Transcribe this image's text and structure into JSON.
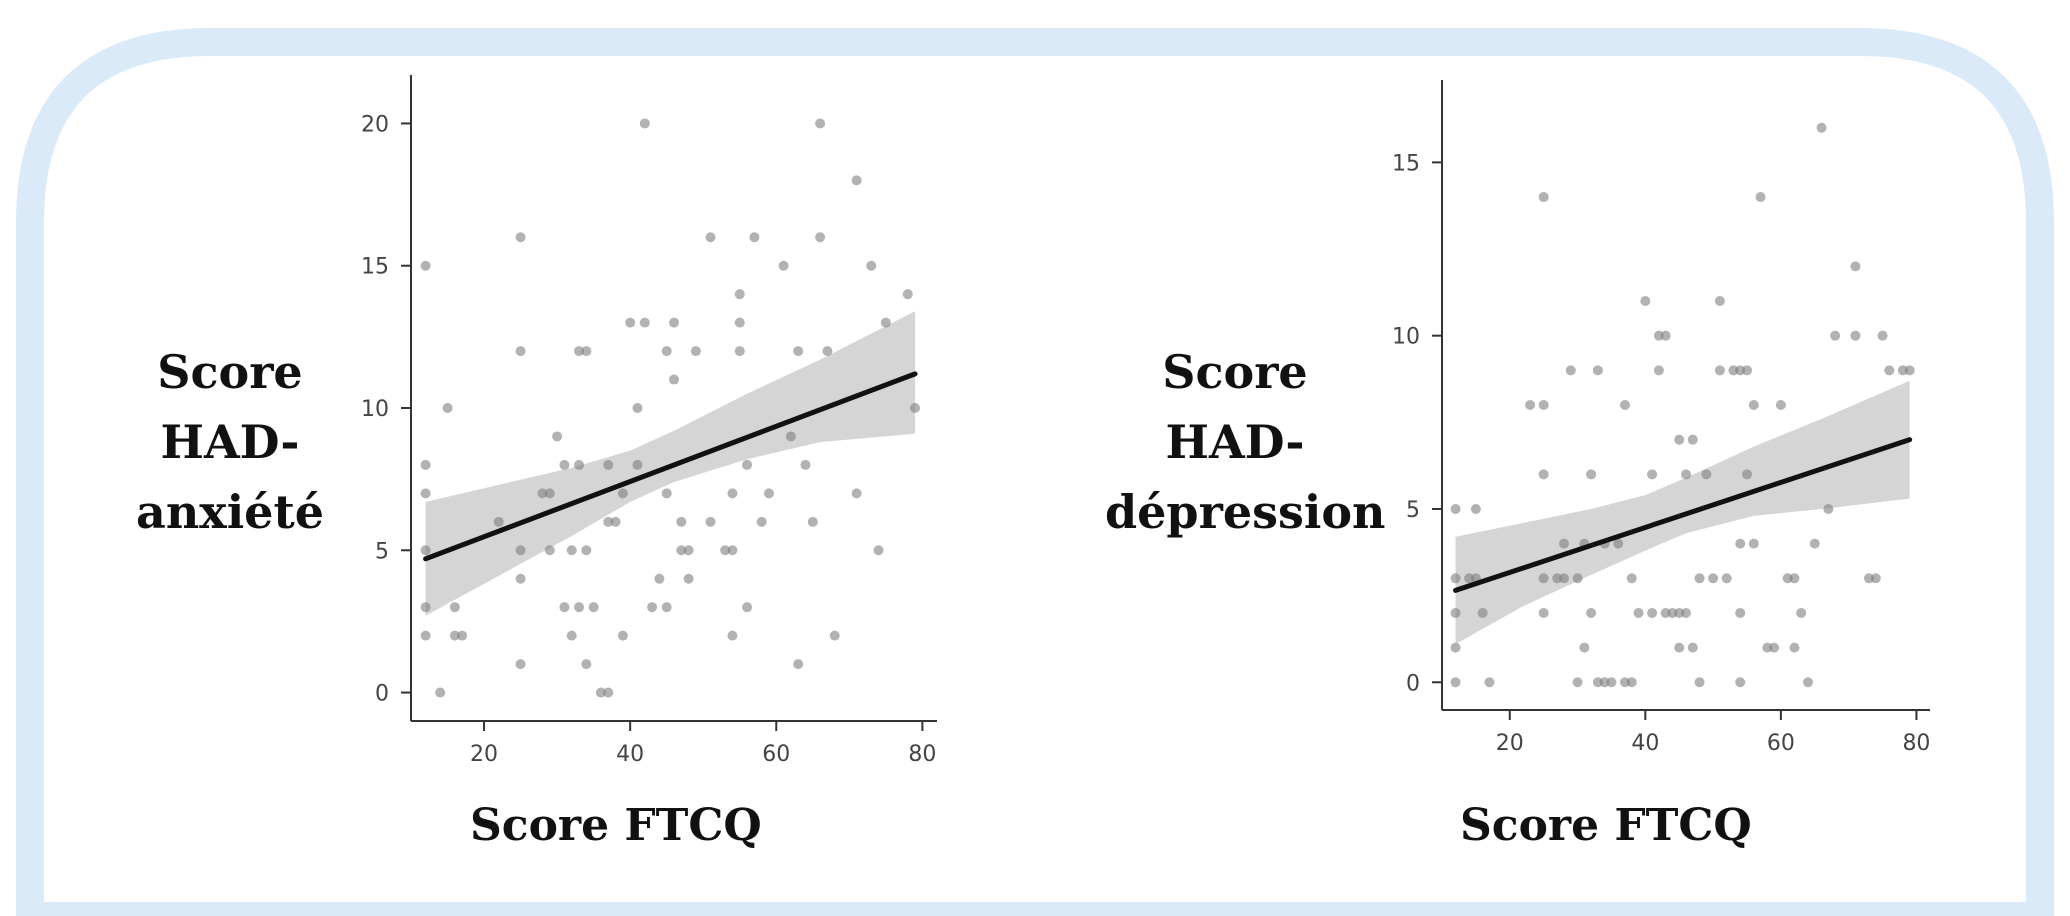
{
  "colors": {
    "frame_border": "#daeaf8",
    "points": "#7f7f7f",
    "band": "#d3d3d3",
    "fit_line": "#111111",
    "axis": "#333333"
  },
  "chart_data": [
    {
      "type": "scatter",
      "xlabel": "Score FTCQ",
      "ylabel_lines": [
        "Score",
        "HAD-",
        "anxiété"
      ],
      "xlim": [
        10,
        82
      ],
      "ylim": [
        -1,
        21
      ],
      "x_ticks": [
        20,
        40,
        60,
        80
      ],
      "y_ticks": [
        0,
        5,
        10,
        15,
        20
      ],
      "regression_line": {
        "x": [
          12,
          79
        ],
        "y": [
          4.7,
          11.2
        ]
      },
      "confidence_band": {
        "x": [
          12,
          22,
          32,
          40,
          46,
          56,
          66,
          79
        ],
        "upper": [
          6.7,
          7.3,
          7.9,
          8.5,
          9.2,
          10.5,
          11.7,
          13.4
        ],
        "lower": [
          2.7,
          4.1,
          5.5,
          6.7,
          7.4,
          8.2,
          8.8,
          9.1
        ]
      },
      "points": [
        [
          12,
          15
        ],
        [
          12,
          8
        ],
        [
          12,
          7
        ],
        [
          12,
          5
        ],
        [
          12,
          3
        ],
        [
          12,
          2
        ],
        [
          14,
          0
        ],
        [
          15,
          10
        ],
        [
          16,
          3
        ],
        [
          16,
          2
        ],
        [
          17,
          2
        ],
        [
          22,
          6
        ],
        [
          25,
          16
        ],
        [
          25,
          12
        ],
        [
          25,
          5
        ],
        [
          25,
          4
        ],
        [
          25,
          1
        ],
        [
          28,
          7
        ],
        [
          29,
          7
        ],
        [
          29,
          5
        ],
        [
          30,
          9
        ],
        [
          31,
          8
        ],
        [
          31,
          3
        ],
        [
          32,
          5
        ],
        [
          32,
          2
        ],
        [
          33,
          12
        ],
        [
          33,
          8
        ],
        [
          33,
          3
        ],
        [
          34,
          12
        ],
        [
          34,
          5
        ],
        [
          34,
          1
        ],
        [
          35,
          3
        ],
        [
          36,
          0
        ],
        [
          37,
          0
        ],
        [
          37,
          8
        ],
        [
          37,
          6
        ],
        [
          38,
          6
        ],
        [
          39,
          7
        ],
        [
          39,
          2
        ],
        [
          40,
          13
        ],
        [
          41,
          10
        ],
        [
          41,
          8
        ],
        [
          42,
          20
        ],
        [
          42,
          13
        ],
        [
          43,
          3
        ],
        [
          44,
          4
        ],
        [
          45,
          12
        ],
        [
          45,
          7
        ],
        [
          45,
          3
        ],
        [
          46,
          13
        ],
        [
          46,
          11
        ],
        [
          47,
          6
        ],
        [
          47,
          5
        ],
        [
          48,
          5
        ],
        [
          48,
          4
        ],
        [
          49,
          12
        ],
        [
          51,
          16
        ],
        [
          51,
          6
        ],
        [
          53,
          5
        ],
        [
          54,
          7
        ],
        [
          54,
          5
        ],
        [
          54,
          2
        ],
        [
          55,
          14
        ],
        [
          55,
          13
        ],
        [
          55,
          12
        ],
        [
          56,
          8
        ],
        [
          56,
          3
        ],
        [
          57,
          16
        ],
        [
          58,
          6
        ],
        [
          59,
          7
        ],
        [
          61,
          15
        ],
        [
          62,
          9
        ],
        [
          63,
          12
        ],
        [
          63,
          1
        ],
        [
          64,
          8
        ],
        [
          65,
          6
        ],
        [
          66,
          20
        ],
        [
          66,
          16
        ],
        [
          67,
          12
        ],
        [
          68,
          2
        ],
        [
          71,
          18
        ],
        [
          71,
          7
        ],
        [
          73,
          15
        ],
        [
          74,
          5
        ],
        [
          75,
          13
        ],
        [
          78,
          14
        ],
        [
          79,
          10
        ]
      ]
    },
    {
      "type": "scatter",
      "xlabel": "Score FTCQ",
      "ylabel_lines": [
        "Score",
        "HAD-",
        "dépression"
      ],
      "xlim": [
        10,
        82
      ],
      "ylim": [
        -0.8,
        16.8
      ],
      "x_ticks": [
        20,
        40,
        60,
        80
      ],
      "y_ticks": [
        0,
        5,
        10,
        15
      ],
      "regression_line": {
        "x": [
          12,
          79
        ],
        "y": [
          2.65,
          7.0
        ]
      },
      "confidence_band": {
        "x": [
          12,
          22,
          32,
          40,
          46,
          56,
          66,
          79
        ],
        "upper": [
          4.2,
          4.6,
          5.0,
          5.4,
          5.9,
          6.8,
          7.6,
          8.7
        ],
        "lower": [
          1.1,
          2.2,
          3.1,
          3.8,
          4.3,
          4.8,
          5.0,
          5.3
        ]
      },
      "points": [
        [
          12,
          5
        ],
        [
          12,
          3
        ],
        [
          12,
          2
        ],
        [
          12,
          1
        ],
        [
          12,
          0
        ],
        [
          14,
          3
        ],
        [
          15,
          5
        ],
        [
          15,
          3
        ],
        [
          16,
          2
        ],
        [
          17,
          0
        ],
        [
          23,
          8
        ],
        [
          25,
          14
        ],
        [
          25,
          8
        ],
        [
          25,
          6
        ],
        [
          25,
          3
        ],
        [
          25,
          2
        ],
        [
          27,
          3
        ],
        [
          28,
          4
        ],
        [
          28,
          3
        ],
        [
          29,
          9
        ],
        [
          30,
          3
        ],
        [
          30,
          0
        ],
        [
          31,
          4
        ],
        [
          31,
          1
        ],
        [
          32,
          6
        ],
        [
          32,
          2
        ],
        [
          33,
          9
        ],
        [
          33,
          0
        ],
        [
          34,
          4
        ],
        [
          34,
          0
        ],
        [
          35,
          0
        ],
        [
          36,
          4
        ],
        [
          37,
          8
        ],
        [
          37,
          0
        ],
        [
          38,
          3
        ],
        [
          38,
          0
        ],
        [
          39,
          2
        ],
        [
          40,
          11
        ],
        [
          41,
          6
        ],
        [
          41,
          2
        ],
        [
          42,
          10
        ],
        [
          42,
          9
        ],
        [
          43,
          10
        ],
        [
          43,
          2
        ],
        [
          44,
          2
        ],
        [
          45,
          7
        ],
        [
          45,
          2
        ],
        [
          45,
          1
        ],
        [
          46,
          6
        ],
        [
          46,
          2
        ],
        [
          47,
          7
        ],
        [
          47,
          1
        ],
        [
          48,
          3
        ],
        [
          48,
          0
        ],
        [
          49,
          6
        ],
        [
          50,
          3
        ],
        [
          51,
          11
        ],
        [
          51,
          9
        ],
        [
          52,
          3
        ],
        [
          53,
          9
        ],
        [
          54,
          9
        ],
        [
          54,
          4
        ],
        [
          54,
          2
        ],
        [
          54,
          0
        ],
        [
          55,
          9
        ],
        [
          55,
          6
        ],
        [
          56,
          8
        ],
        [
          56,
          4
        ],
        [
          57,
          14
        ],
        [
          58,
          1
        ],
        [
          59,
          1
        ],
        [
          60,
          8
        ],
        [
          61,
          3
        ],
        [
          62,
          3
        ],
        [
          62,
          1
        ],
        [
          63,
          2
        ],
        [
          64,
          0
        ],
        [
          65,
          4
        ],
        [
          66,
          16
        ],
        [
          67,
          5
        ],
        [
          68,
          10
        ],
        [
          71,
          12
        ],
        [
          71,
          10
        ],
        [
          73,
          3
        ],
        [
          74,
          3
        ],
        [
          75,
          10
        ],
        [
          76,
          9
        ],
        [
          78,
          9
        ],
        [
          79,
          9
        ]
      ]
    }
  ]
}
